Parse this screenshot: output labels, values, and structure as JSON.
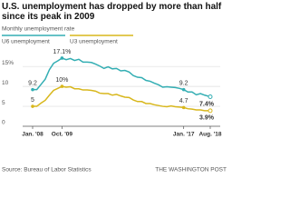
{
  "chart_data": {
    "type": "line",
    "title": "U.S. unemployment has dropped by more than half since its peak in 2009",
    "subtitle": "Monthly unemployment rate",
    "source": "Source: Bureau of Labor Statistics",
    "credit": "THE WASHINGTON POST",
    "x": [
      "2008-01",
      "2008-04",
      "2008-07",
      "2008-10",
      "2009-01",
      "2009-04",
      "2009-07",
      "2009-10",
      "2010-01",
      "2010-04",
      "2010-07",
      "2010-10",
      "2011-01",
      "2011-04",
      "2011-07",
      "2011-10",
      "2012-01",
      "2012-04",
      "2012-07",
      "2012-10",
      "2013-01",
      "2013-04",
      "2013-07",
      "2013-10",
      "2014-01",
      "2014-04",
      "2014-07",
      "2014-10",
      "2015-01",
      "2015-04",
      "2015-07",
      "2015-10",
      "2016-01",
      "2016-04",
      "2016-07",
      "2016-10",
      "2017-01",
      "2017-04",
      "2017-07",
      "2017-10",
      "2018-01",
      "2018-04",
      "2018-07",
      "2018-08"
    ],
    "xticks": [
      {
        "value": "2008-01",
        "label": "Jan. '08"
      },
      {
        "value": "2009-10",
        "label": "Oct. '09"
      },
      {
        "value": "2017-01",
        "label": "Jan. '17"
      },
      {
        "value": "2018-08",
        "label": "Aug. '18"
      }
    ],
    "ylim": [
      0,
      18
    ],
    "yticks": [
      0,
      5,
      10,
      {
        "value": 15,
        "label": "15%"
      }
    ],
    "grid": true,
    "series": [
      {
        "name": "U6 unemployment",
        "color": "#33aeb3",
        "values": [
          9.2,
          9.2,
          10.5,
          11.8,
          14.2,
          15.8,
          16.4,
          17.1,
          16.7,
          17.0,
          16.5,
          16.8,
          16.1,
          16.1,
          16.0,
          15.6,
          15.1,
          14.5,
          14.9,
          14.4,
          14.5,
          13.9,
          14.0,
          13.6,
          12.7,
          12.3,
          12.2,
          11.5,
          11.3,
          10.8,
          10.4,
          9.8,
          9.9,
          9.8,
          9.7,
          9.5,
          9.2,
          8.6,
          8.6,
          7.9,
          8.2,
          7.8,
          7.5,
          7.4
        ],
        "value_labels": [
          "9.2",
          null,
          null,
          null,
          null,
          null,
          null,
          "17.1%",
          null,
          null,
          null,
          null,
          null,
          null,
          null,
          null,
          null,
          null,
          null,
          null,
          null,
          null,
          null,
          null,
          null,
          null,
          null,
          null,
          null,
          null,
          null,
          null,
          null,
          null,
          null,
          null,
          "9.2",
          null,
          null,
          null,
          null,
          null,
          null,
          "7.4%"
        ]
      },
      {
        "name": "U3 unemployment",
        "color": "#d8b71c",
        "values": [
          5.0,
          5.0,
          5.8,
          6.5,
          7.8,
          9.0,
          9.5,
          10.0,
          9.8,
          9.9,
          9.4,
          9.4,
          9.1,
          9.1,
          9.0,
          8.8,
          8.3,
          8.2,
          8.2,
          7.8,
          8.0,
          7.6,
          7.3,
          7.2,
          6.6,
          6.2,
          6.2,
          5.7,
          5.7,
          5.4,
          5.2,
          5.0,
          4.9,
          5.1,
          4.9,
          4.8,
          4.7,
          4.4,
          4.3,
          4.1,
          4.1,
          3.9,
          3.9,
          3.9
        ],
        "value_labels": [
          "5",
          null,
          null,
          null,
          null,
          null,
          null,
          "10%",
          null,
          null,
          null,
          null,
          null,
          null,
          null,
          null,
          null,
          null,
          null,
          null,
          null,
          null,
          null,
          null,
          null,
          null,
          null,
          null,
          null,
          null,
          null,
          null,
          null,
          null,
          null,
          null,
          "4.7",
          null,
          null,
          null,
          null,
          null,
          null,
          "3.9%"
        ]
      }
    ]
  }
}
